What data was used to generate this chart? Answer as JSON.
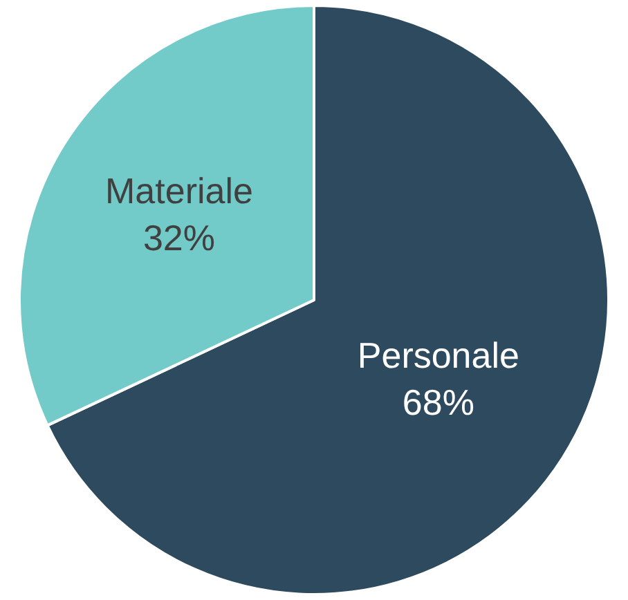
{
  "chart_data": {
    "type": "pie",
    "categories": [
      "Personale",
      "Materiale"
    ],
    "values": [
      68,
      32
    ],
    "value_labels": [
      "68%",
      "32%"
    ],
    "colors": [
      "#2e4a5e",
      "#72cbc9"
    ],
    "legend": false
  }
}
